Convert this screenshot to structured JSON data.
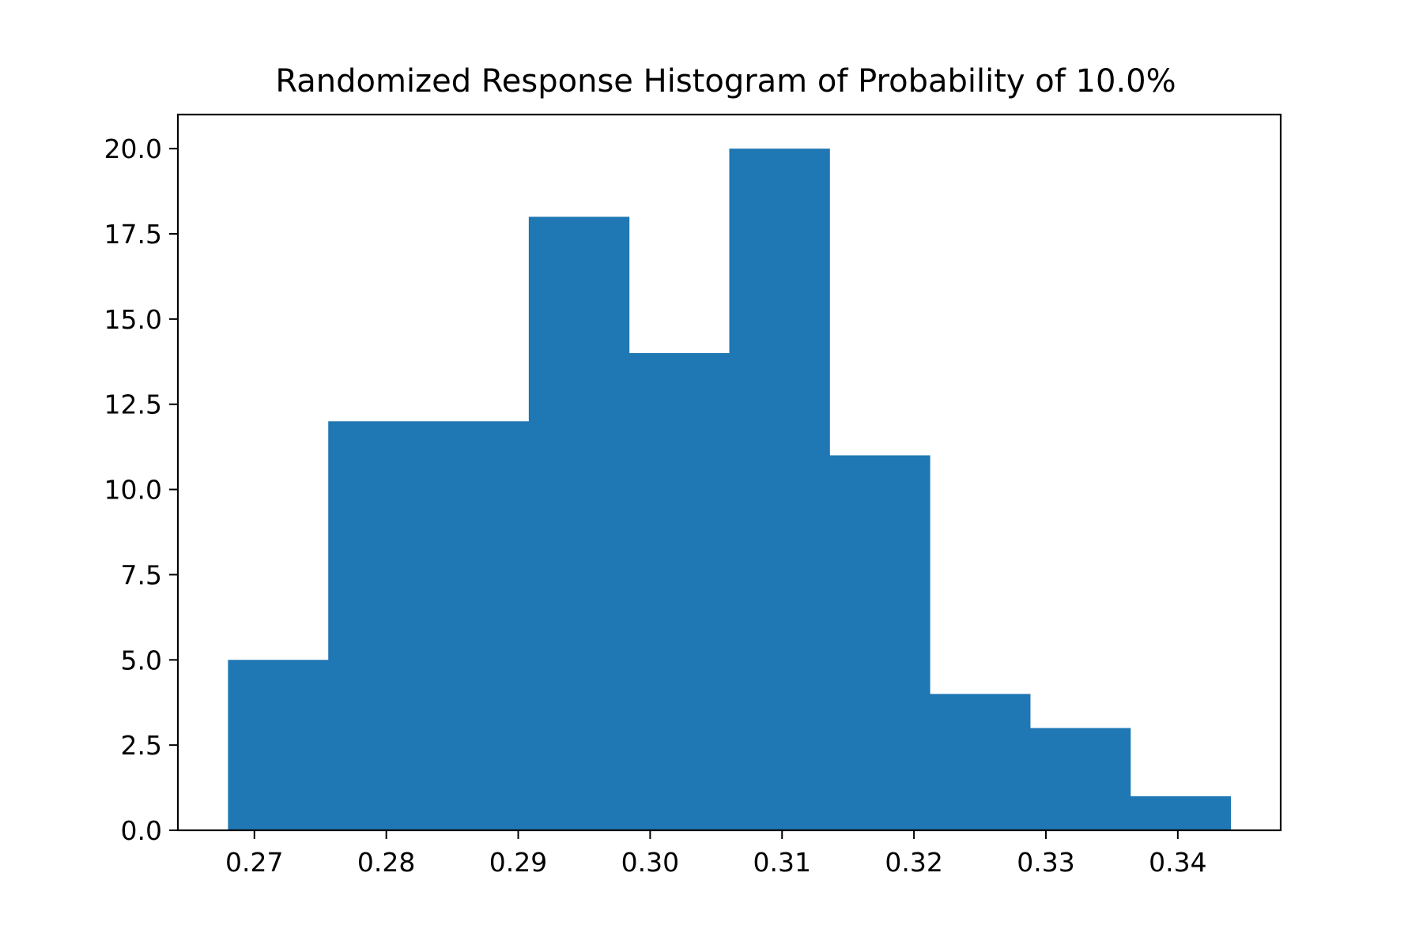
{
  "chart_data": {
    "type": "bar",
    "title": "Randomized Response Histogram of Probability of 10.0%",
    "xlabel": "",
    "ylabel": "",
    "bin_edges": [
      0.268,
      0.2756,
      0.2832,
      0.2908,
      0.2984,
      0.306,
      0.3136,
      0.3212,
      0.3288,
      0.3364,
      0.344
    ],
    "counts": [
      5,
      12,
      12,
      18,
      14,
      20,
      11,
      4,
      3,
      1
    ],
    "xlim": [
      0.2642,
      0.3478
    ],
    "ylim": [
      0,
      21
    ],
    "x_ticks": [
      0.27,
      0.28,
      0.29,
      0.3,
      0.31,
      0.32,
      0.33,
      0.34
    ],
    "x_tick_labels": [
      "0.27",
      "0.28",
      "0.29",
      "0.30",
      "0.31",
      "0.32",
      "0.33",
      "0.34"
    ],
    "y_ticks": [
      0,
      2.5,
      5,
      7.5,
      10,
      12.5,
      15,
      17.5,
      20
    ],
    "y_tick_labels": [
      "0.0",
      "2.5",
      "5.0",
      "7.5",
      "10.0",
      "12.5",
      "15.0",
      "17.5",
      "20.0"
    ],
    "bar_color": "#1f77b4",
    "grid": false,
    "legend": "none"
  }
}
